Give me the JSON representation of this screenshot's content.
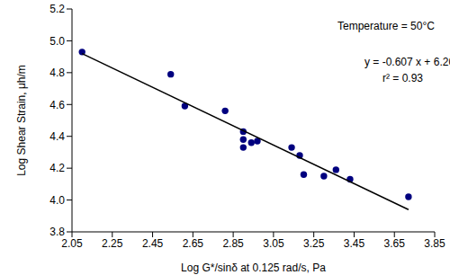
{
  "chart_data": {
    "type": "scatter",
    "x_label": "Log G*/sinδ at 0.125 rad/s, Pa",
    "y_label": "Log Shear Strain, μh/m",
    "annotations": [
      "Temperature = 50°C",
      "y = -0.607 x + 6.20",
      "r² = 0.93"
    ],
    "xlim": [
      2.05,
      3.85
    ],
    "xticks": [
      2.05,
      2.25,
      2.45,
      2.65,
      2.85,
      3.05,
      3.25,
      3.45,
      3.65,
      3.85
    ],
    "ylim": [
      3.8,
      5.2
    ],
    "yticks": [
      3.8,
      {
        "value": 4,
        "label": "4.0"
      },
      4.2,
      4.4,
      4.6,
      4.8,
      {
        "value": 5,
        "label": "5.0"
      },
      5.2
    ],
    "grid": false,
    "series": [
      {
        "type": "scatter",
        "marker": "circle",
        "color": "#00007f",
        "x": [
          2.1,
          2.54,
          2.61,
          2.81,
          2.9,
          2.9,
          2.9,
          2.94,
          2.97,
          3.14,
          3.18,
          3.2,
          3.3,
          3.36,
          3.43,
          3.72
        ],
        "values": [
          4.93,
          4.79,
          4.59,
          4.56,
          4.43,
          4.38,
          4.33,
          4.36,
          4.37,
          4.33,
          4.28,
          4.16,
          4.15,
          4.19,
          4.13,
          4.02
        ]
      },
      {
        "type": "line",
        "line_style": "solid",
        "color": "#000000",
        "x": [
          2.1,
          3.72
        ],
        "values": [
          4.92,
          3.94
        ]
      }
    ]
  }
}
